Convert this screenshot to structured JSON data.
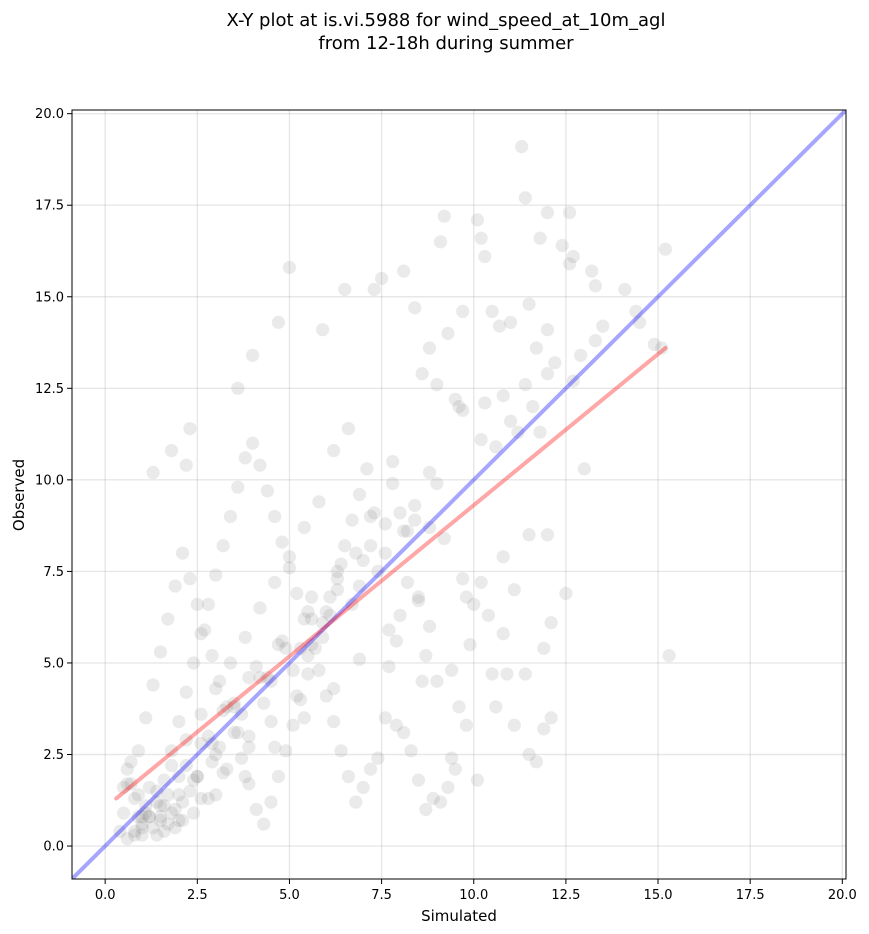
{
  "chart_data": {
    "type": "scatter",
    "title_lines": [
      "X-Y plot at is.vi.5988 for wind_speed_at_10m_agl",
      "from 12-18h during summer"
    ],
    "xlabel": "Simulated",
    "ylabel": "Observed",
    "xlim": [
      -0.9,
      20.1
    ],
    "ylim": [
      -0.9,
      20.1
    ],
    "xticks": [
      0.0,
      2.5,
      5.0,
      7.5,
      10.0,
      12.5,
      15.0,
      17.5,
      20.0
    ],
    "yticks": [
      0.0,
      2.5,
      5.0,
      7.5,
      10.0,
      12.5,
      15.0,
      17.5,
      20.0
    ],
    "xtick_labels": [
      "0.0",
      "2.5",
      "5.0",
      "7.5",
      "10.0",
      "12.5",
      "15.0",
      "17.5",
      "20.0"
    ],
    "ytick_labels": [
      "0.0",
      "2.5",
      "5.0",
      "7.5",
      "10.0",
      "12.5",
      "15.0",
      "17.5",
      "20.0"
    ],
    "grid": true,
    "points": {
      "color": "#7f7f7f",
      "x": [
        11.3,
        11.4,
        12.0,
        12.6,
        9.2,
        9.1,
        10.1,
        10.2,
        10.3,
        11.8,
        12.4,
        12.7,
        12.6,
        13.2,
        13.3,
        14.1,
        15.2,
        14.5,
        14.9,
        15.1,
        14.4,
        13.5,
        13.3,
        12.9,
        12.0,
        11.5,
        11.0,
        10.7,
        10.5,
        9.7,
        9.3,
        8.8,
        8.4,
        8.1,
        7.5,
        7.3,
        6.5,
        5.9,
        5.0,
        4.7,
        4.0,
        3.6,
        2.3,
        2.2,
        1.8,
        1.3,
        12.7,
        12.2,
        11.7,
        11.4,
        10.8,
        10.3,
        9.7,
        9.5,
        9.0,
        8.6,
        11.0,
        10.2,
        10.6,
        11.2,
        11.8,
        12.0,
        11.6,
        11.5,
        12.0,
        13.0,
        15.3,
        12.5,
        12.1,
        11.9,
        11.1,
        10.8,
        10.2,
        9.8,
        9.7,
        9.2,
        8.8,
        8.4,
        8.1,
        7.8,
        7.6,
        10.4,
        10.8,
        10.0,
        9.9,
        11.4,
        10.9,
        10.5,
        9.4,
        9.0,
        8.6,
        8.7,
        8.8,
        8.5,
        8.2,
        8.0,
        7.9,
        7.7,
        9.6,
        9.8,
        10.6,
        11.1,
        11.5,
        11.7,
        12.1,
        11.9,
        10.1,
        9.5,
        9.4,
        9.3,
        9.1,
        8.9,
        8.7,
        8.5,
        8.3,
        8.1,
        7.9,
        7.6,
        7.4,
        7.2,
        7.0,
        6.8,
        6.6,
        6.4,
        6.2,
        6.0,
        5.8,
        5.6,
        5.4,
        5.2,
        5.0,
        4.8,
        4.6,
        4.4,
        4.2,
        4.0,
        3.8,
        3.6,
        3.4,
        3.2,
        3.0,
        2.8,
        2.6,
        2.4,
        2.2,
        2.0,
        1.8,
        1.6,
        1.4,
        1.2,
        1.0,
        0.8,
        0.6,
        0.4,
        7.1,
        6.9,
        6.7,
        6.5,
        6.3,
        6.1,
        5.9,
        5.7,
        5.5,
        5.3,
        5.1,
        4.9,
        4.7,
        4.5,
        4.3,
        4.1,
        3.9,
        3.7,
        3.5,
        3.3,
        3.1,
        2.9,
        2.7,
        2.5,
        2.3,
        2.1,
        1.9,
        1.7,
        1.5,
        1.3,
        1.1,
        0.9,
        0.7,
        0.5,
        6.6,
        6.2,
        5.8,
        5.4,
        5.0,
        4.6,
        4.2,
        3.8,
        3.4,
        3.0,
        2.6,
        2.2,
        1.8,
        1.4,
        1.0,
        0.6,
        7.3,
        6.8,
        6.0,
        5.5,
        4.4,
        3.9,
        3.3,
        2.8,
        2.0,
        1.6,
        1.2,
        7.8,
        7.2,
        6.4,
        5.6,
        4.8,
        4.1,
        3.5,
        2.9,
        2.4,
        1.9,
        1.5,
        0.9,
        8.4,
        7.6,
        6.9,
        6.1,
        5.3,
        4.5,
        3.7,
        3.1,
        2.5,
        2.1,
        1.7,
        1.1,
        0.7,
        9.0,
        8.2,
        7.4,
        6.7,
        5.9,
        5.1,
        4.3,
        3.6,
        2.9,
        2.3,
        1.8,
        1.3,
        0.8,
        9.6,
        8.8,
        8.0,
        7.2,
        6.3,
        5.5,
        4.7,
        3.9,
        3.2,
        2.6,
        2.0,
        1.5,
        1.0,
        8.5,
        7.7,
        6.9,
        6.2,
        5.4,
        4.6,
        3.8,
        3.0,
        2.4,
        1.9,
        1.4,
        0.9,
        0.5,
        7.0,
        6.3,
        5.6,
        4.9,
        4.2,
        3.5,
        2.8,
        2.2,
        1.7,
        1.2,
        0.8,
        5.2,
        4.5,
        3.9,
        3.2,
        2.6,
        2.1,
        1.6,
        1.1,
        0.6,
        3.0,
        2.5,
        2.0,
        1.5,
        1.0
      ],
      "y": [
        19.1,
        17.7,
        17.3,
        17.3,
        17.2,
        16.5,
        17.1,
        16.6,
        16.1,
        16.6,
        16.4,
        16.1,
        15.9,
        15.7,
        15.3,
        15.2,
        16.3,
        14.3,
        13.7,
        13.6,
        14.6,
        14.2,
        13.8,
        13.4,
        14.1,
        14.8,
        14.3,
        14.2,
        14.6,
        14.6,
        14.0,
        13.6,
        14.7,
        15.7,
        15.5,
        15.2,
        15.2,
        14.1,
        15.8,
        14.3,
        13.4,
        12.5,
        11.4,
        10.4,
        10.8,
        10.2,
        12.7,
        13.2,
        13.6,
        12.6,
        12.3,
        12.1,
        11.9,
        12.2,
        12.6,
        12.9,
        11.6,
        11.1,
        10.9,
        11.3,
        11.3,
        12.9,
        12.0,
        8.5,
        8.5,
        10.3,
        5.2,
        6.9,
        6.1,
        5.4,
        7.0,
        7.9,
        7.2,
        6.8,
        7.3,
        8.4,
        8.7,
        9.3,
        8.6,
        9.9,
        8.8,
        6.3,
        5.8,
        6.6,
        5.5,
        4.7,
        4.7,
        4.7,
        4.8,
        4.5,
        4.5,
        5.2,
        6.0,
        6.8,
        7.2,
        6.3,
        5.6,
        4.9,
        3.8,
        3.3,
        3.8,
        3.3,
        2.5,
        2.3,
        3.5,
        3.2,
        1.8,
        2.1,
        2.4,
        1.6,
        1.2,
        1.3,
        1.0,
        1.8,
        2.6,
        3.1,
        3.3,
        3.5,
        2.4,
        2.1,
        1.6,
        1.2,
        1.9,
        2.6,
        3.4,
        4.1,
        4.8,
        5.5,
        6.2,
        6.9,
        7.6,
        8.3,
        9.0,
        9.7,
        10.4,
        11.0,
        10.6,
        9.8,
        9.0,
        8.2,
        7.4,
        6.6,
        5.8,
        5.0,
        4.2,
        3.4,
        2.6,
        1.8,
        1.2,
        0.8,
        0.5,
        0.3,
        0.2,
        0.4,
        10.3,
        9.6,
        8.9,
        8.2,
        7.5,
        6.8,
        6.1,
        5.4,
        4.7,
        4.0,
        3.3,
        2.6,
        1.9,
        1.2,
        0.6,
        1.0,
        1.7,
        2.4,
        3.1,
        3.8,
        4.5,
        5.2,
        5.9,
        6.6,
        7.3,
        8.0,
        7.1,
        6.2,
        5.3,
        4.4,
        3.5,
        2.6,
        1.7,
        0.9,
        11.4,
        10.8,
        9.4,
        8.7,
        7.9,
        7.2,
        6.5,
        5.7,
        5.0,
        4.3,
        3.6,
        2.9,
        2.2,
        1.5,
        0.8,
        2.1,
        9.1,
        8.0,
        6.4,
        5.2,
        4.6,
        3.0,
        2.1,
        1.3,
        0.7,
        1.1,
        1.6,
        10.5,
        9.0,
        7.7,
        6.8,
        5.6,
        4.9,
        3.9,
        2.8,
        1.8,
        1.0,
        0.7,
        1.4,
        8.9,
        8.0,
        7.1,
        6.3,
        5.4,
        4.5,
        3.6,
        2.7,
        1.9,
        1.2,
        0.6,
        1.1,
        2.3,
        9.9,
        8.6,
        7.5,
        6.6,
        5.7,
        4.8,
        3.9,
        3.1,
        2.3,
        1.5,
        0.9,
        0.5,
        1.3,
        12.0,
        10.2,
        9.1,
        8.2,
        7.3,
        6.4,
        5.5,
        4.6,
        3.7,
        2.8,
        1.9,
        1.1,
        0.6,
        6.7,
        5.9,
        5.1,
        4.3,
        3.5,
        2.7,
        1.9,
        1.4,
        0.9,
        0.5,
        0.3,
        0.8,
        1.6,
        7.8,
        7.0,
        6.2,
        5.4,
        4.6,
        3.8,
        3.0,
        2.2,
        1.4,
        0.8,
        0.4,
        4.1,
        3.4,
        2.7,
        2.0,
        1.3,
        0.7,
        0.4,
        0.9,
        1.7,
        2.5,
        1.9,
        1.4,
        0.8,
        0.3
      ]
    },
    "series": [
      {
        "type": "line",
        "color": "#0000ff",
        "x": [
          -0.9,
          20.1
        ],
        "y": [
          -0.9,
          20.1
        ]
      },
      {
        "type": "line",
        "color": "#ff0000",
        "x": [
          0.3,
          15.2
        ],
        "y": [
          1.3,
          13.6
        ]
      }
    ]
  }
}
